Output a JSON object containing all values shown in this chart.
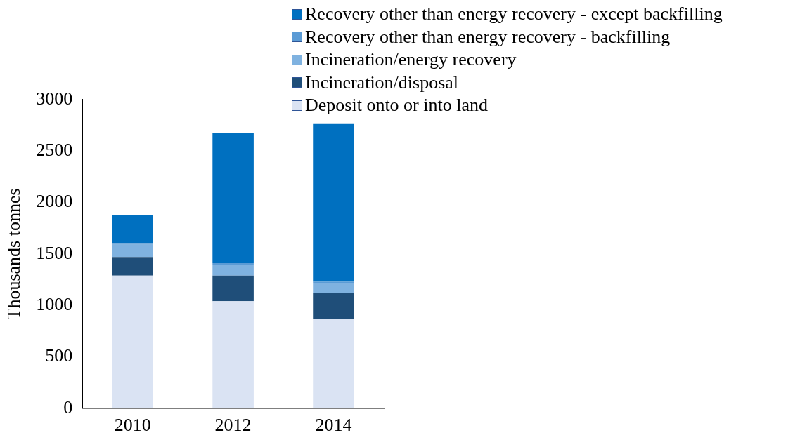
{
  "chart_data": {
    "type": "bar",
    "stacked": true,
    "categories": [
      "2010",
      "2012",
      "2014"
    ],
    "series": [
      {
        "name": "Deposit onto or into land",
        "color": "#dae3f3",
        "values": [
          1290,
          1040,
          870
        ]
      },
      {
        "name": "Incineration/disposal",
        "color": "#1f4e79",
        "values": [
          180,
          250,
          250
        ]
      },
      {
        "name": "Incineration/energy recovery",
        "color": "#7fb2e0",
        "values": [
          120,
          100,
          100
        ]
      },
      {
        "name": "Recovery other than energy recovery - backfilling",
        "color": "#5b9bd5",
        "values": [
          10,
          20,
          10
        ]
      },
      {
        "name": "Recovery other than energy recovery - except backfilling",
        "color": "#0070c0",
        "values": [
          280,
          1270,
          1540
        ]
      }
    ],
    "ylabel": "Thousands tonnes",
    "ylim": [
      0,
      3000
    ],
    "yticks": [
      0,
      500,
      1000,
      1500,
      2000,
      2500,
      3000
    ],
    "grid": false,
    "legend": "top right"
  }
}
